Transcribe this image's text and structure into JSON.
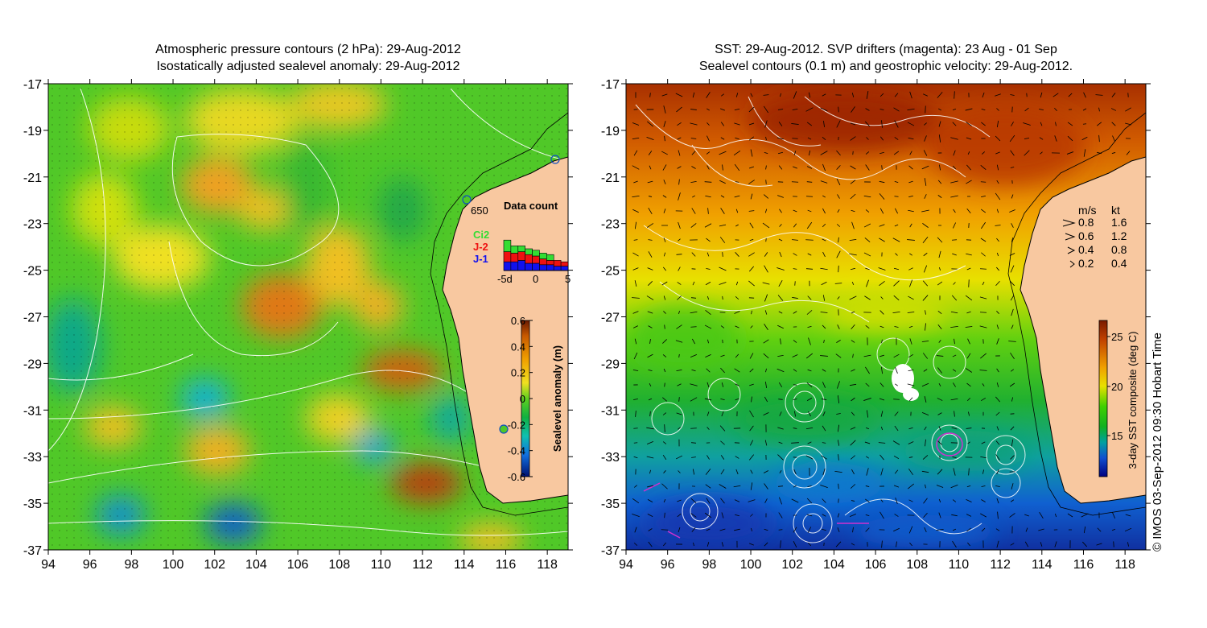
{
  "left_panel": {
    "title_line1": "Atmospheric pressure contours (2 hPa): 29-Aug-2012",
    "title_line2": "Isostatically adjusted sealevel anomaly: 29-Aug-2012",
    "y_ticks": [
      "-17",
      "-19",
      "-21",
      "-23",
      "-25",
      "-27",
      "-29",
      "-31",
      "-33",
      "-35",
      "-37"
    ],
    "x_ticks": [
      "94",
      "96",
      "98",
      "100",
      "102",
      "104",
      "106",
      "108",
      "110",
      "112",
      "114",
      "116",
      "118"
    ],
    "annotation_650": "650",
    "data_count": {
      "title": "Data count",
      "legend": [
        "Ci2",
        "J-2",
        "J-1"
      ],
      "legend_colors": [
        "#33dd33",
        "#ee1111",
        "#1111ee"
      ],
      "x_labels": [
        "-5d",
        "0",
        "5"
      ],
      "bars": [
        {
          "blue": 12,
          "red": 14,
          "green": 16
        },
        {
          "blue": 12,
          "red": 12,
          "green": 10
        },
        {
          "blue": 14,
          "red": 12,
          "green": 8
        },
        {
          "blue": 10,
          "red": 12,
          "green": 8
        },
        {
          "blue": 10,
          "red": 10,
          "green": 8
        },
        {
          "blue": 8,
          "red": 8,
          "green": 8
        },
        {
          "blue": 8,
          "red": 6,
          "green": 8
        },
        {
          "blue": 6,
          "red": 8,
          "green": 0
        },
        {
          "blue": 6,
          "red": 6,
          "green": 0
        }
      ]
    },
    "colorbar": {
      "label": "Sealevel anomaly (m)",
      "ticks": [
        "0.6",
        "0.4",
        "0.2",
        "0",
        "-0.2",
        "-0.4",
        "-0.6"
      ],
      "colors": [
        "#6a1a00",
        "#c85a00",
        "#f0a000",
        "#f0e020",
        "#c8e000",
        "#50d020",
        "#10b040",
        "#10c0a0",
        "#10a0e0",
        "#1050d0",
        "#001070"
      ]
    }
  },
  "right_panel": {
    "title_line1": "SST: 29-Aug-2012. SVP drifters (magenta): 23 Aug - 01 Sep",
    "title_line2": "Sealevel contours (0.1 m) and geostrophic velocity: 29-Aug-2012.",
    "y_ticks": [
      "-17",
      "-19",
      "-21",
      "-23",
      "-25",
      "-27",
      "-29",
      "-31",
      "-33",
      "-35",
      "-37"
    ],
    "x_ticks": [
      "94",
      "96",
      "98",
      "100",
      "102",
      "104",
      "106",
      "108",
      "110",
      "112",
      "114",
      "116",
      "118"
    ],
    "velocity_legend": {
      "header_ms": "m/s",
      "header_kt": "kt",
      "rows": [
        {
          "ms": "0.8",
          "kt": "1.6"
        },
        {
          "ms": "0.6",
          "kt": "1.2"
        },
        {
          "ms": "0.4",
          "kt": "0.8"
        },
        {
          "ms": "0.2",
          "kt": "0.4"
        }
      ]
    },
    "colorbar": {
      "label": "3-day SST composite (deg C)",
      "ticks": [
        "25",
        "20",
        "15"
      ],
      "colors": [
        "#7a1a00",
        "#c04000",
        "#e07000",
        "#f0a000",
        "#f0e000",
        "#b0e000",
        "#40d000",
        "#10b020",
        "#00a080",
        "#0080d0",
        "#1030c0",
        "#000080"
      ]
    },
    "credit": "© IMOS 03-Sep-2012 09:30 Hobart Time"
  }
}
